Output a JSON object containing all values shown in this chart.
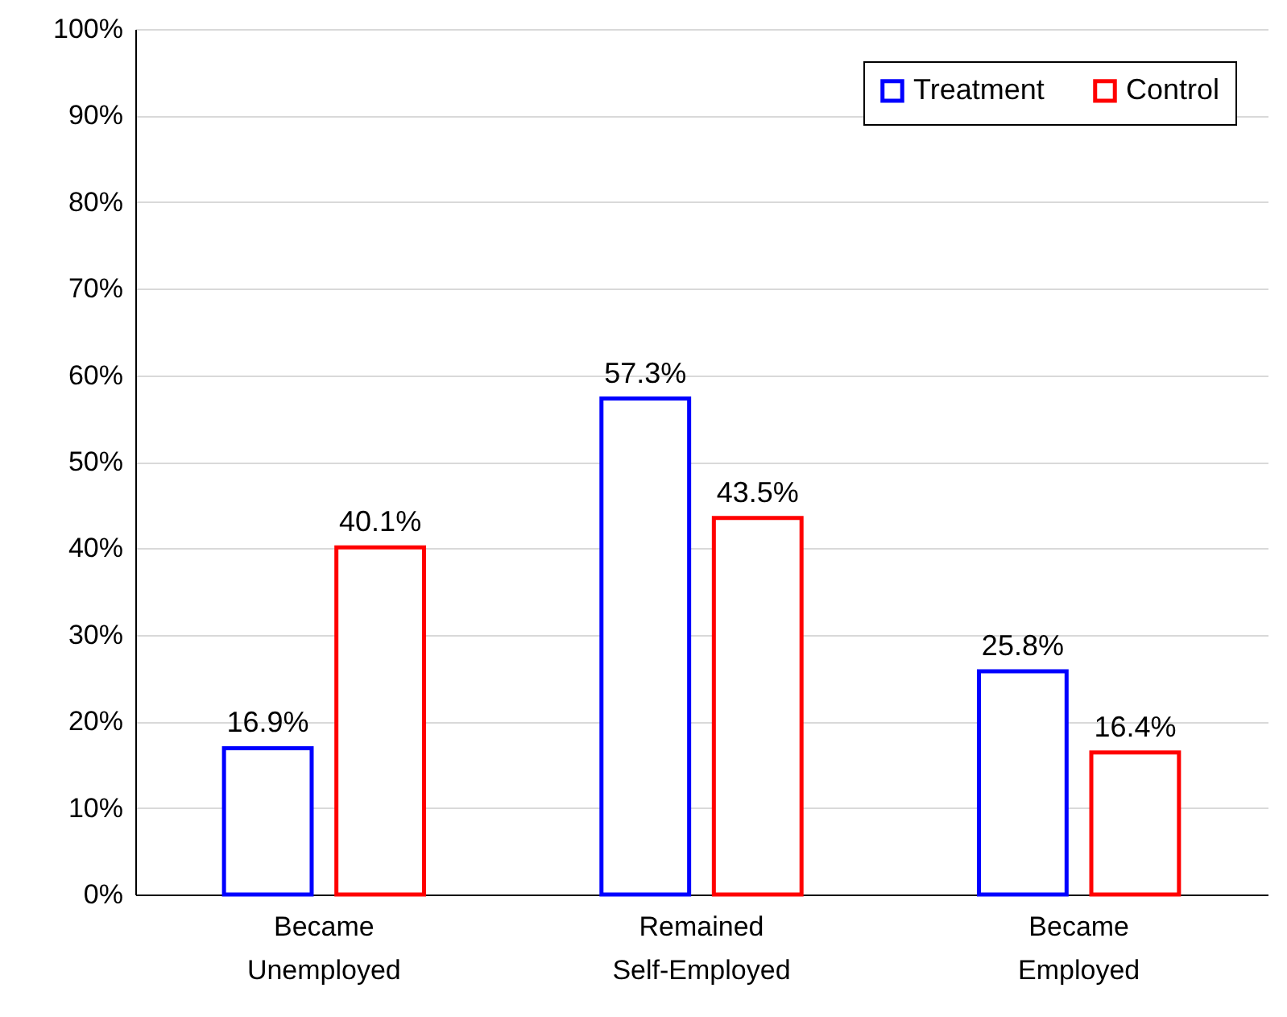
{
  "chart_data": {
    "type": "bar",
    "categories": [
      "Became Unemployed",
      "Remained Self-Employed",
      "Became Employed"
    ],
    "series": [
      {
        "name": "Treatment",
        "color": "#0000ff",
        "values": [
          16.9,
          57.3,
          25.8
        ],
        "value_labels": [
          "16.9%",
          "57.3%",
          "25.8%"
        ]
      },
      {
        "name": "Control",
        "color": "#ff0000",
        "values": [
          40.1,
          43.5,
          16.4
        ],
        "value_labels": [
          "40.1%",
          "43.5%",
          "16.4%"
        ]
      }
    ],
    "ylim": [
      0,
      100
    ],
    "yticks": [
      {
        "value": 0,
        "label": "0%"
      },
      {
        "value": 10,
        "label": "10%"
      },
      {
        "value": 20,
        "label": "20%"
      },
      {
        "value": 30,
        "label": "30%"
      },
      {
        "value": 40,
        "label": "40%"
      },
      {
        "value": 50,
        "label": "50%"
      },
      {
        "value": 60,
        "label": "60%"
      },
      {
        "value": 70,
        "label": "70%"
      },
      {
        "value": 80,
        "label": "80%"
      },
      {
        "value": 90,
        "label": "90%"
      },
      {
        "value": 100,
        "label": "100%"
      }
    ],
    "grid": "y",
    "legend": "top right"
  }
}
